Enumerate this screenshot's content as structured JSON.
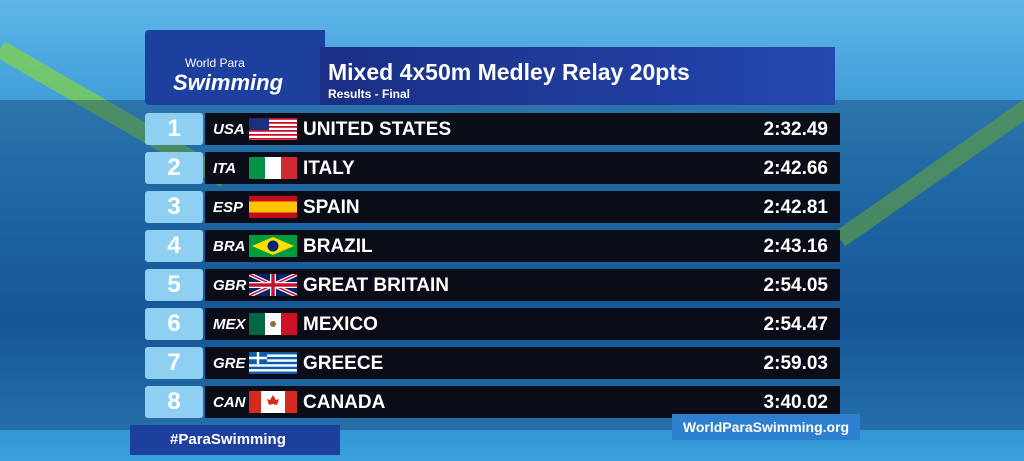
{
  "header": {
    "logo": [
      "World Para",
      "Swimming"
    ],
    "title": "Mixed 4x50m Medley Relay 20pts",
    "subtitle": "Results - Final"
  },
  "table": {
    "rows": [
      [
        1,
        "USA",
        "UNITED STATES",
        "2:32.49"
      ],
      [
        2,
        "ITA",
        "ITALY",
        "2:42.66"
      ],
      [
        3,
        "ESP",
        "SPAIN",
        "2:42.81"
      ],
      [
        4,
        "BRA",
        "BRAZIL",
        "2:43.16"
      ],
      [
        5,
        "GBR",
        "GREAT BRITAIN",
        "2:54.05"
      ],
      [
        6,
        "MEX",
        "MEXICO",
        "2:54.47"
      ],
      [
        7,
        "GRE",
        "GREECE",
        "2:59.03"
      ],
      [
        8,
        "CAN",
        "CANADA",
        "3:40.02"
      ]
    ]
  },
  "footer": {
    "hashtag": "#ParaSwimming",
    "website": "WorldParaSwimming.org"
  }
}
